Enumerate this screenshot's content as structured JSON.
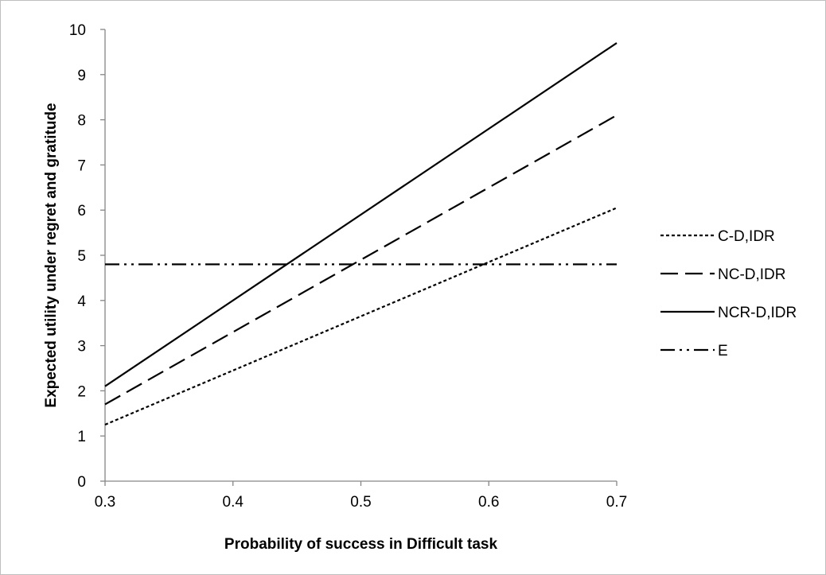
{
  "chart_data": {
    "type": "line",
    "title": "",
    "xlabel": "Probability of success in Difficult task",
    "ylabel": "Expected utility under regret and gratitude",
    "xlim": [
      0.3,
      0.7
    ],
    "ylim": [
      0,
      10
    ],
    "xticks": [
      "0.3",
      "0.4",
      "0.5",
      "0.6",
      "0.7"
    ],
    "yticks": [
      "0",
      "1",
      "2",
      "3",
      "4",
      "5",
      "6",
      "7",
      "8",
      "9",
      "10"
    ],
    "grid": false,
    "legend_position": "right",
    "x": [
      0.3,
      0.7
    ],
    "series": [
      {
        "name": "C-D,IDR",
        "values": [
          1.25,
          6.05
        ],
        "dash": "dotted"
      },
      {
        "name": "NC-D,IDR",
        "values": [
          1.7,
          8.1
        ],
        "dash": "dashed"
      },
      {
        "name": "NCR-D,IDR",
        "values": [
          2.1,
          9.7
        ],
        "dash": "solid"
      },
      {
        "name": "E",
        "values": [
          4.8,
          4.8
        ],
        "dash": "dash-dot-dot"
      }
    ]
  }
}
